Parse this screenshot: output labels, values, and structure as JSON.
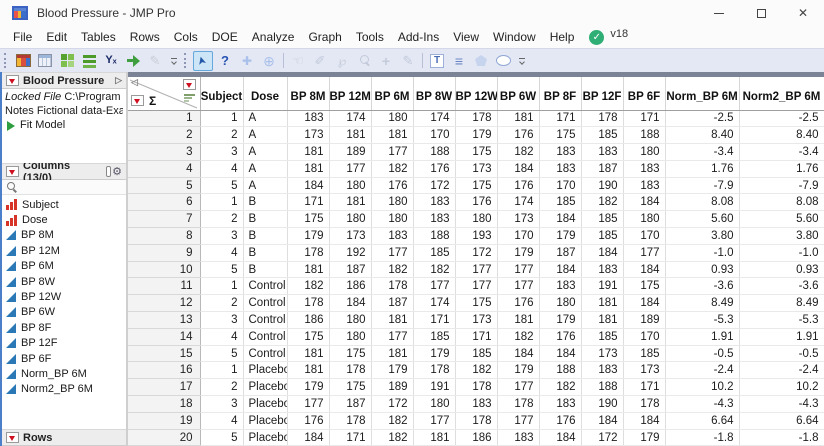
{
  "window": {
    "title": "Blood Pressure - JMP Pro",
    "version_badge": "v18",
    "controls": {
      "minimize": "minimize",
      "maximize": "maximize",
      "close": "close"
    }
  },
  "menu_bar": {
    "items": [
      "File",
      "Edit",
      "Tables",
      "Rows",
      "Cols",
      "DOE",
      "Analyze",
      "Graph",
      "Tools",
      "Add-Ins",
      "View",
      "Window",
      "Help"
    ]
  },
  "toolbar": {
    "group1": [
      {
        "name": "data-table-icon"
      },
      {
        "name": "summary-table-icon"
      },
      {
        "name": "window-grid-icon"
      },
      {
        "name": "green-bars-icon"
      },
      {
        "name": "formula-icon"
      },
      {
        "name": "import-arrow-icon"
      },
      {
        "name": "edit-pen-icon",
        "disabled": true
      }
    ],
    "group2": [
      {
        "name": "cursor-icon",
        "selected": true
      },
      {
        "name": "help-icon"
      },
      {
        "name": "move-icon"
      },
      {
        "name": "crosshair-icon"
      },
      {
        "name": "separator"
      },
      {
        "name": "hand-icon",
        "disabled": true
      },
      {
        "name": "brush-icon",
        "disabled": true
      },
      {
        "name": "lasso-icon",
        "disabled": true
      },
      {
        "name": "zoom-icon",
        "disabled": true
      },
      {
        "name": "plus-icon",
        "disabled": true
      },
      {
        "name": "pencil-icon",
        "disabled": true
      },
      {
        "name": "separator"
      },
      {
        "name": "text-annotation-icon"
      },
      {
        "name": "lines-annotation-icon"
      },
      {
        "name": "polygon-annotation-icon"
      },
      {
        "name": "oval-annotation-icon"
      }
    ]
  },
  "sidebar": {
    "table_panel": {
      "title": "Blood Pressure",
      "properties": [
        {
          "label": "Locked File",
          "value": "C:\\Program Fi"
        },
        {
          "label": "Notes",
          "value": "Fictional data-Exa"
        }
      ],
      "scripts": [
        {
          "label": "Fit Model"
        }
      ]
    },
    "columns_panel": {
      "title": "Columns (13/0)",
      "items": [
        {
          "label": "Subject",
          "type": "nominal"
        },
        {
          "label": "Dose",
          "type": "nominal"
        },
        {
          "label": "BP 8M",
          "type": "continuous"
        },
        {
          "label": "BP 12M",
          "type": "continuous"
        },
        {
          "label": "BP 6M",
          "type": "continuous"
        },
        {
          "label": "BP 8W",
          "type": "continuous"
        },
        {
          "label": "BP 12W",
          "type": "continuous"
        },
        {
          "label": "BP 6W",
          "type": "continuous"
        },
        {
          "label": "BP 8F",
          "type": "continuous"
        },
        {
          "label": "BP 12F",
          "type": "continuous"
        },
        {
          "label": "BP 6F",
          "type": "continuous"
        },
        {
          "label": "Norm_BP 6M",
          "type": "continuous"
        },
        {
          "label": "Norm2_BP 6M",
          "type": "continuous"
        }
      ]
    },
    "rows_panel": {
      "title": "Rows"
    }
  },
  "table": {
    "corner_sigma": "Σ",
    "columns": [
      "Subject",
      "Dose",
      "BP 8M",
      "BP 12M",
      "BP 6M",
      "BP 8W",
      "BP 12W",
      "BP 6W",
      "BP 8F",
      "BP 12F",
      "BP 6F",
      "Norm_BP 6M",
      "Norm2_BP 6M"
    ],
    "rows": [
      {
        "n": "1",
        "cells": [
          "1",
          "A",
          "183",
          "174",
          "180",
          "174",
          "178",
          "181",
          "171",
          "178",
          "171",
          "-2.5",
          "-2.5"
        ]
      },
      {
        "n": "2",
        "cells": [
          "2",
          "A",
          "173",
          "181",
          "181",
          "170",
          "179",
          "176",
          "175",
          "185",
          "188",
          "8.40",
          "8.40"
        ]
      },
      {
        "n": "3",
        "cells": [
          "3",
          "A",
          "181",
          "189",
          "177",
          "188",
          "175",
          "182",
          "183",
          "183",
          "180",
          "-3.4",
          "-3.4"
        ]
      },
      {
        "n": "4",
        "cells": [
          "4",
          "A",
          "181",
          "177",
          "182",
          "176",
          "173",
          "184",
          "183",
          "187",
          "183",
          "1.76",
          "1.76"
        ]
      },
      {
        "n": "5",
        "cells": [
          "5",
          "A",
          "184",
          "180",
          "176",
          "172",
          "175",
          "176",
          "170",
          "190",
          "183",
          "-7.9",
          "-7.9"
        ]
      },
      {
        "n": "6",
        "cells": [
          "1",
          "B",
          "171",
          "181",
          "180",
          "183",
          "176",
          "174",
          "185",
          "182",
          "184",
          "8.08",
          "8.08"
        ]
      },
      {
        "n": "7",
        "cells": [
          "2",
          "B",
          "175",
          "180",
          "180",
          "183",
          "180",
          "173",
          "184",
          "185",
          "180",
          "5.60",
          "5.60"
        ]
      },
      {
        "n": "8",
        "cells": [
          "3",
          "B",
          "179",
          "173",
          "183",
          "188",
          "193",
          "170",
          "179",
          "185",
          "170",
          "3.80",
          "3.80"
        ]
      },
      {
        "n": "9",
        "cells": [
          "4",
          "B",
          "178",
          "192",
          "177",
          "185",
          "172",
          "179",
          "187",
          "184",
          "177",
          "-1.0",
          "-1.0"
        ]
      },
      {
        "n": "10",
        "cells": [
          "5",
          "B",
          "181",
          "187",
          "182",
          "182",
          "177",
          "177",
          "184",
          "183",
          "184",
          "0.93",
          "0.93"
        ]
      },
      {
        "n": "11",
        "cells": [
          "1",
          "Control",
          "182",
          "186",
          "178",
          "177",
          "177",
          "177",
          "183",
          "191",
          "175",
          "-3.6",
          "-3.6"
        ]
      },
      {
        "n": "12",
        "cells": [
          "2",
          "Control",
          "178",
          "184",
          "187",
          "174",
          "175",
          "176",
          "180",
          "181",
          "184",
          "8.49",
          "8.49"
        ]
      },
      {
        "n": "13",
        "cells": [
          "3",
          "Control",
          "186",
          "180",
          "181",
          "171",
          "173",
          "181",
          "179",
          "181",
          "189",
          "-5.3",
          "-5.3"
        ]
      },
      {
        "n": "14",
        "cells": [
          "4",
          "Control",
          "175",
          "180",
          "177",
          "185",
          "171",
          "182",
          "176",
          "185",
          "170",
          "1.91",
          "1.91"
        ]
      },
      {
        "n": "15",
        "cells": [
          "5",
          "Control",
          "181",
          "175",
          "181",
          "179",
          "185",
          "184",
          "184",
          "173",
          "185",
          "-0.5",
          "-0.5"
        ]
      },
      {
        "n": "16",
        "cells": [
          "1",
          "Placebo",
          "181",
          "178",
          "179",
          "178",
          "182",
          "179",
          "188",
          "183",
          "173",
          "-2.4",
          "-2.4"
        ]
      },
      {
        "n": "17",
        "cells": [
          "2",
          "Placebo",
          "179",
          "175",
          "189",
          "191",
          "178",
          "177",
          "182",
          "188",
          "171",
          "10.2",
          "10.2"
        ]
      },
      {
        "n": "18",
        "cells": [
          "3",
          "Placebo",
          "177",
          "187",
          "172",
          "180",
          "183",
          "178",
          "183",
          "190",
          "178",
          "-4.3",
          "-4.3"
        ]
      },
      {
        "n": "19",
        "cells": [
          "4",
          "Placebo",
          "176",
          "178",
          "182",
          "177",
          "178",
          "177",
          "176",
          "184",
          "184",
          "6.64",
          "6.64"
        ]
      },
      {
        "n": "20",
        "cells": [
          "5",
          "Placebo",
          "184",
          "171",
          "182",
          "181",
          "186",
          "183",
          "184",
          "172",
          "179",
          "-1.8",
          "-1.8"
        ]
      }
    ]
  },
  "colors": {
    "window_edge_blue": "#4b7fc9",
    "toolbar_bg": "#e4e8f4",
    "top_strip": "#7b8396",
    "red_triangle": "#cf1020",
    "nominal_icon_red": "#d63426",
    "continuous_icon_blue": "#2b78b6",
    "fit_model_green": "#2f9e41",
    "check_badge_green": "#2fae76",
    "selected_tool_bg": "#cde6f7"
  }
}
